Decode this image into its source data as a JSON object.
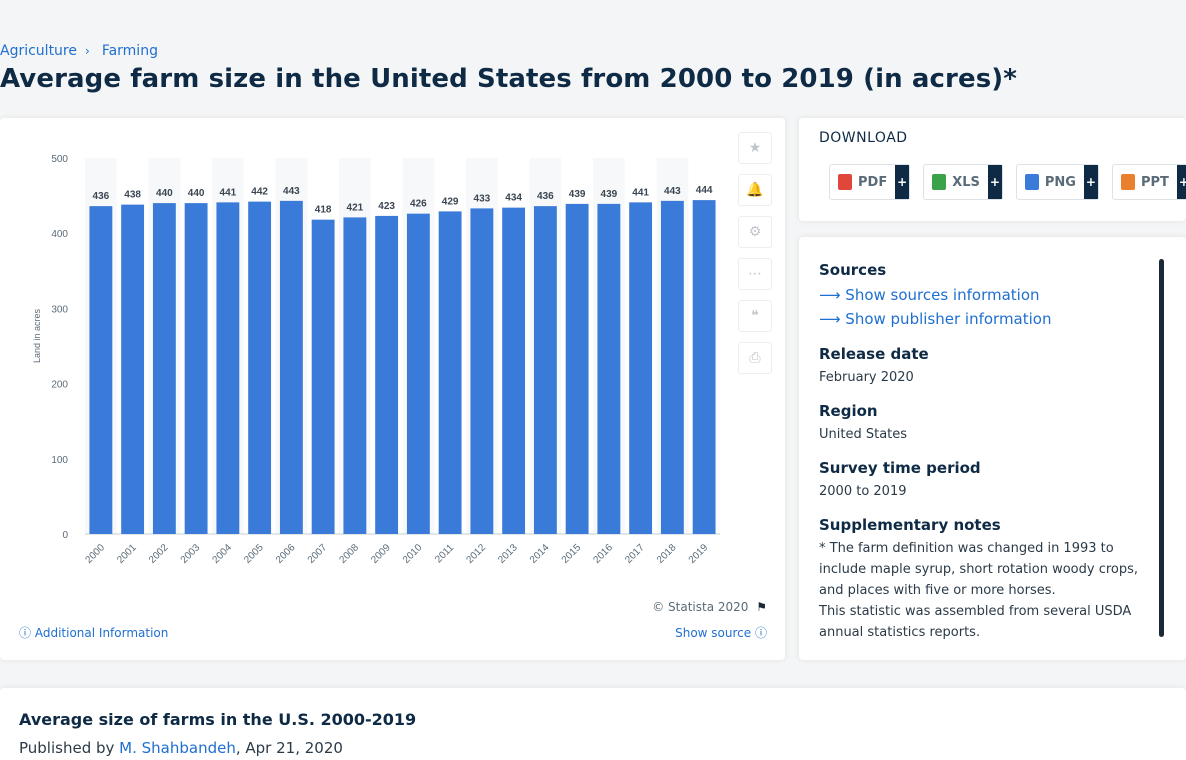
{
  "breadcrumb": {
    "items": [
      "Agriculture",
      "Farming"
    ],
    "separator": "›"
  },
  "page_title": "Average farm size in the United States from 2000 to 2019 (in acres)*",
  "chart_note": "© Statista 2020",
  "additional_info": "Additional Information",
  "show_source": "Show source",
  "colors": {
    "bar": "#3a7ad8",
    "accent": "#1f6fd1",
    "title": "#0e2a45"
  },
  "tools": [
    {
      "icon": "star-icon",
      "glyph": "★"
    },
    {
      "icon": "bell-icon",
      "glyph": "🔔"
    },
    {
      "icon": "gear-icon",
      "glyph": "⚙"
    },
    {
      "icon": "share-icon",
      "glyph": "⋯"
    },
    {
      "icon": "quote-icon",
      "glyph": "❝"
    },
    {
      "icon": "print-icon",
      "glyph": "⎙"
    }
  ],
  "download": {
    "title": "DOWNLOAD",
    "buttons": [
      {
        "label": "PDF",
        "color": "#e0463a"
      },
      {
        "label": "XLS",
        "color": "#3aa34a"
      },
      {
        "label": "PNG",
        "color": "#3a7ad8"
      },
      {
        "label": "PPT",
        "color": "#e8802e"
      }
    ],
    "plus": "+"
  },
  "info": {
    "sources_heading": "Sources",
    "show_sources": "Show sources information",
    "show_publisher": "Show publisher information",
    "release_heading": "Release date",
    "release_value": "February 2020",
    "region_heading": "Region",
    "region_value": "United States",
    "period_heading": "Survey time period",
    "period_value": "2000 to 2019",
    "notes_heading": "Supplementary notes",
    "notes_1": "* The farm definition was changed in 1993 to include maple syrup, short rotation woody crops, and places with five or more horses.",
    "notes_2": "This statistic was assembled from several USDA annual statistics reports."
  },
  "bottom": {
    "title": "Average size of farms in the U.S. 2000-2019",
    "published_by": "Published by",
    "author": "M. Shahbandeh",
    "date": ", Apr 21, 2020"
  },
  "chart_data": {
    "type": "bar",
    "categories": [
      "2000",
      "2001",
      "2002",
      "2003",
      "2004",
      "2005",
      "2006",
      "2007",
      "2008",
      "2009",
      "2010",
      "2011",
      "2012",
      "2013",
      "2014",
      "2015",
      "2016",
      "2017",
      "2018",
      "2019"
    ],
    "values": [
      436,
      438,
      440,
      440,
      441,
      442,
      443,
      418,
      421,
      423,
      426,
      429,
      433,
      434,
      436,
      439,
      439,
      441,
      443,
      444
    ],
    "title": "",
    "xlabel": "",
    "ylabel": "Land in acres",
    "ylim": [
      0,
      500
    ],
    "yticks": [
      0,
      100,
      200,
      300,
      400,
      500
    ],
    "data_labels": true,
    "grid": false,
    "legend": "none"
  }
}
